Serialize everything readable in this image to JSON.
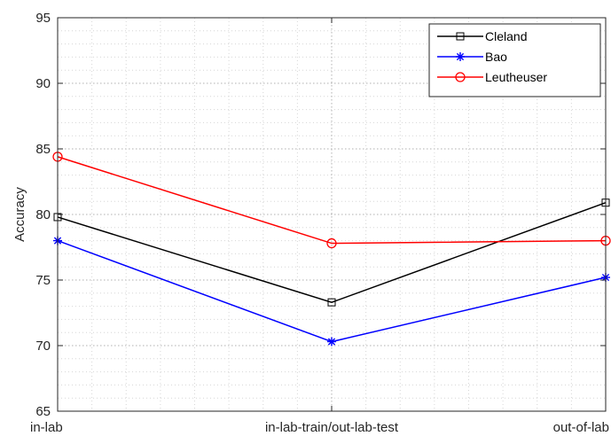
{
  "chart_data": {
    "type": "line",
    "categories": [
      "in-lab",
      "in-lab-train/out-lab-test",
      "out-of-lab"
    ],
    "series": [
      {
        "name": "Cleland",
        "values": [
          79.8,
          73.3,
          80.9
        ],
        "color": "#000000",
        "marker": "square"
      },
      {
        "name": "Bao",
        "values": [
          78.0,
          70.3,
          75.2
        ],
        "color": "#0000ff",
        "marker": "asterisk"
      },
      {
        "name": "Leutheuser",
        "values": [
          84.4,
          77.8,
          78.0
        ],
        "color": "#ff0000",
        "marker": "circle"
      }
    ],
    "xlabel": "",
    "ylabel": "Accuracy",
    "ylim": [
      65,
      95
    ],
    "yticks": [
      65,
      70,
      75,
      80,
      85,
      90,
      95
    ],
    "grid": "dotted major and minor",
    "legend_position": "top-right"
  }
}
